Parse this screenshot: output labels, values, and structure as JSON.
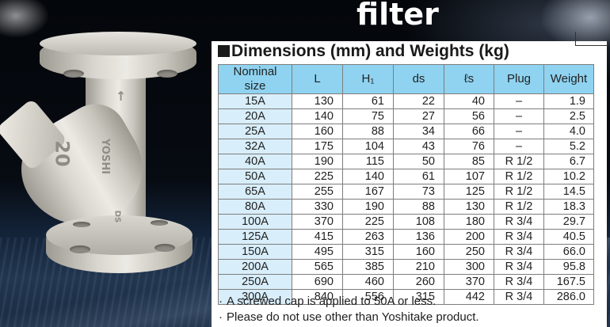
{
  "title": "filter",
  "product": {
    "embossed_size": "20",
    "embossed_brand": "YOSHI",
    "embossed_mark": "DS"
  },
  "panel": {
    "heading": "Dimensions (mm) and Weights (kg)",
    "table": {
      "headers": [
        "Nominal size",
        "L",
        "H₁",
        "ds",
        "ℓs",
        "Plug",
        "Weight"
      ],
      "rows": [
        [
          "15A",
          "130",
          "61",
          "22",
          "40",
          "–",
          "1.9"
        ],
        [
          "20A",
          "140",
          "75",
          "27",
          "56",
          "–",
          "2.5"
        ],
        [
          "25A",
          "160",
          "88",
          "34",
          "66",
          "–",
          "4.0"
        ],
        [
          "32A",
          "175",
          "104",
          "43",
          "76",
          "–",
          "5.2"
        ],
        [
          "40A",
          "190",
          "115",
          "50",
          "85",
          "R 1/2",
          "6.7"
        ],
        [
          "50A",
          "225",
          "140",
          "61",
          "107",
          "R 1/2",
          "10.2"
        ],
        [
          "65A",
          "255",
          "167",
          "73",
          "125",
          "R 1/2",
          "14.5"
        ],
        [
          "80A",
          "330",
          "190",
          "88",
          "130",
          "R 1/2",
          "18.3"
        ],
        [
          "100A",
          "370",
          "225",
          "108",
          "180",
          "R 3/4",
          "29.7"
        ],
        [
          "125A",
          "415",
          "263",
          "136",
          "200",
          "R 3/4",
          "40.5"
        ],
        [
          "150A",
          "495",
          "315",
          "160",
          "250",
          "R 3/4",
          "66.0"
        ],
        [
          "200A",
          "565",
          "385",
          "210",
          "300",
          "R 3/4",
          "95.8"
        ],
        [
          "250A",
          "690",
          "460",
          "260",
          "370",
          "R 3/4",
          "167.5"
        ],
        [
          "300A",
          "840",
          "556",
          "315",
          "442",
          "R 3/4",
          "286.0"
        ]
      ]
    },
    "notes": [
      "A screwed cap is applied to 50A or less.",
      "Please do not use other than Yoshitake product."
    ],
    "note_bullet": "·"
  },
  "colors": {
    "header_bg": "#8fd3f1",
    "size_col_bg": "#d8eefa",
    "panel_bg": "#ffffff"
  }
}
